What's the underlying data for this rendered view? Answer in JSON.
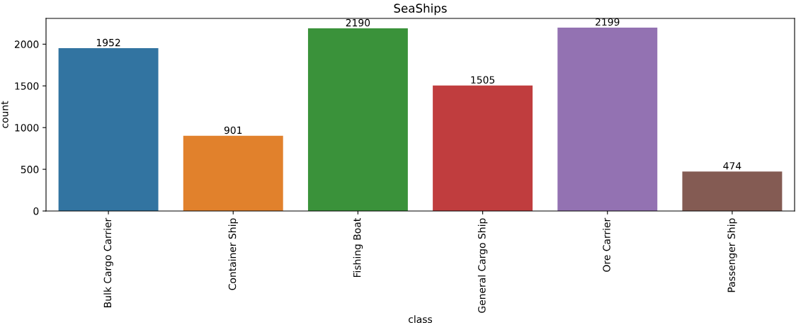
{
  "chart_data": {
    "type": "bar",
    "title": "SeaShips",
    "xlabel": "class",
    "ylabel": "count",
    "categories": [
      "Bulk Cargo Carrier",
      "Container Ship",
      "Fishing Boat",
      "General Cargo Ship",
      "Ore Carrier",
      "Passenger Ship"
    ],
    "values": [
      1952,
      901,
      2190,
      1505,
      2199,
      474
    ],
    "colors": [
      "#3274a1",
      "#e1812c",
      "#3a923a",
      "#c03d3e",
      "#9372b2",
      "#845b53"
    ],
    "ylim": [
      0,
      2309
    ],
    "yticks": [
      0,
      500,
      1000,
      1500,
      2000
    ],
    "data_labels": true,
    "grid": false
  }
}
